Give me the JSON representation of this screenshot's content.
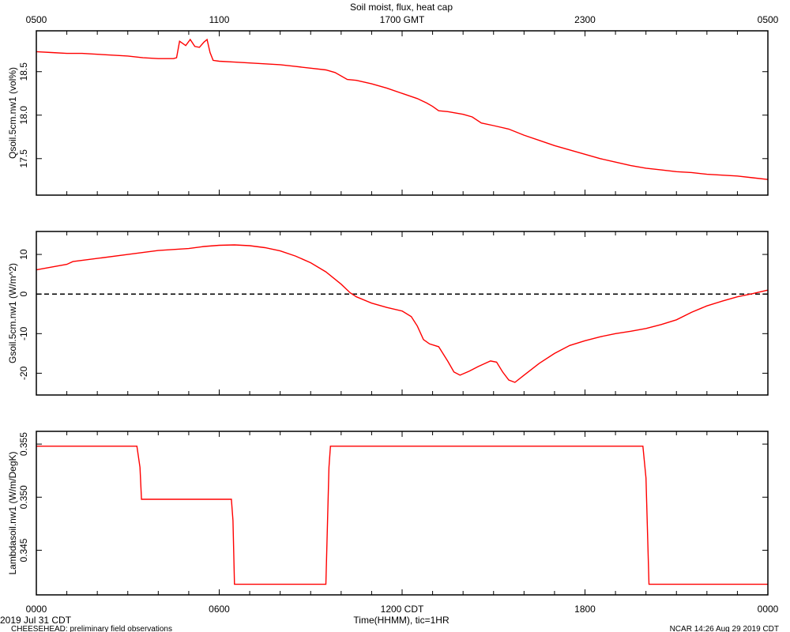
{
  "chart_data": {
    "type": "line",
    "title": "Soil moist, flux, heat cap",
    "x_top_ticks": [
      "0500",
      "1100",
      "1700 GMT",
      "2300",
      "0500"
    ],
    "x_bottom_ticks": [
      "0000",
      "0600",
      "1200 CDT",
      "1800",
      "0000"
    ],
    "xlabel": "Time(HHMM), tic=1HR",
    "xlim": [
      0,
      24
    ],
    "date_label": "2019 Jul 31 CDT",
    "footer_left": "CHEESEHEAD: preliminary field observations",
    "footer_right": "NCAR 14:26 Aug 29 2019 CDT",
    "line_color": "#ff0000",
    "panels": [
      {
        "name": "moisture",
        "ylabel": "Qsoil.5cm.nw1 (vol%)",
        "ylim": [
          17.08,
          18.97
        ],
        "yticks": [
          17.5,
          18.0,
          18.5
        ],
        "ytick_labels": [
          "17.5",
          "18.0",
          "18.5"
        ],
        "zero_line": false,
        "points": [
          [
            0,
            18.73
          ],
          [
            0.5,
            18.72
          ],
          [
            1,
            18.71
          ],
          [
            1.5,
            18.71
          ],
          [
            2,
            18.7
          ],
          [
            2.5,
            18.69
          ],
          [
            3,
            18.68
          ],
          [
            3.5,
            18.66
          ],
          [
            4,
            18.65
          ],
          [
            4.5,
            18.65
          ],
          [
            4.6,
            18.66
          ],
          [
            4.7,
            18.85
          ],
          [
            4.9,
            18.8
          ],
          [
            5.05,
            18.87
          ],
          [
            5.2,
            18.79
          ],
          [
            5.35,
            18.78
          ],
          [
            5.5,
            18.84
          ],
          [
            5.6,
            18.87
          ],
          [
            5.7,
            18.72
          ],
          [
            5.8,
            18.63
          ],
          [
            6,
            18.62
          ],
          [
            6.5,
            18.61
          ],
          [
            7,
            18.6
          ],
          [
            7.5,
            18.59
          ],
          [
            8,
            18.58
          ],
          [
            8.5,
            18.56
          ],
          [
            9,
            18.54
          ],
          [
            9.5,
            18.52
          ],
          [
            9.8,
            18.49
          ],
          [
            10.2,
            18.41
          ],
          [
            10.5,
            18.4
          ],
          [
            11,
            18.36
          ],
          [
            11.5,
            18.31
          ],
          [
            12,
            18.25
          ],
          [
            12.5,
            18.19
          ],
          [
            12.8,
            18.14
          ],
          [
            13,
            18.1
          ],
          [
            13.2,
            18.05
          ],
          [
            13.5,
            18.04
          ],
          [
            14,
            18.01
          ],
          [
            14.3,
            17.98
          ],
          [
            14.6,
            17.91
          ],
          [
            15,
            17.88
          ],
          [
            15.5,
            17.84
          ],
          [
            16,
            17.77
          ],
          [
            16.5,
            17.71
          ],
          [
            17,
            17.65
          ],
          [
            17.5,
            17.6
          ],
          [
            18,
            17.55
          ],
          [
            18.5,
            17.5
          ],
          [
            19,
            17.46
          ],
          [
            19.5,
            17.42
          ],
          [
            20,
            17.39
          ],
          [
            20.5,
            17.37
          ],
          [
            21,
            17.35
          ],
          [
            21.5,
            17.34
          ],
          [
            22,
            17.32
          ],
          [
            22.5,
            17.31
          ],
          [
            23,
            17.3
          ],
          [
            23.5,
            17.28
          ],
          [
            24,
            17.26
          ]
        ]
      },
      {
        "name": "flux",
        "ylabel": "Gsoil.5cm.nw1 (W/m^2)",
        "ylim": [
          -25.5,
          15.8
        ],
        "yticks": [
          -20,
          -10,
          0,
          10
        ],
        "ytick_labels": [
          "-20",
          "-10",
          "0",
          "10"
        ],
        "zero_line": true,
        "points": [
          [
            0,
            6.1
          ],
          [
            0.5,
            6.8
          ],
          [
            1,
            7.5
          ],
          [
            1.2,
            8.2
          ],
          [
            2,
            9.0
          ],
          [
            3,
            10.0
          ],
          [
            3.5,
            10.5
          ],
          [
            4,
            11.0
          ],
          [
            5,
            11.5
          ],
          [
            5.5,
            12.0
          ],
          [
            6,
            12.3
          ],
          [
            6.5,
            12.4
          ],
          [
            7,
            12.2
          ],
          [
            7.5,
            11.7
          ],
          [
            8,
            10.9
          ],
          [
            8.5,
            9.6
          ],
          [
            9,
            7.9
          ],
          [
            9.5,
            5.6
          ],
          [
            10,
            2.5
          ],
          [
            10.3,
            0.3
          ],
          [
            10.5,
            -0.7
          ],
          [
            11,
            -2.3
          ],
          [
            11.5,
            -3.4
          ],
          [
            12,
            -4.3
          ],
          [
            12.3,
            -5.7
          ],
          [
            12.5,
            -8.1
          ],
          [
            12.7,
            -11.5
          ],
          [
            12.9,
            -12.6
          ],
          [
            13.2,
            -13.3
          ],
          [
            13.5,
            -17.0
          ],
          [
            13.7,
            -19.7
          ],
          [
            13.9,
            -20.5
          ],
          [
            14.2,
            -19.5
          ],
          [
            14.5,
            -18.3
          ],
          [
            14.7,
            -17.6
          ],
          [
            14.9,
            -16.9
          ],
          [
            15.1,
            -17.2
          ],
          [
            15.3,
            -19.7
          ],
          [
            15.5,
            -21.7
          ],
          [
            15.7,
            -22.3
          ],
          [
            16,
            -20.5
          ],
          [
            16.5,
            -17.5
          ],
          [
            17,
            -15.0
          ],
          [
            17.5,
            -13.0
          ],
          [
            18,
            -11.8
          ],
          [
            18.5,
            -10.8
          ],
          [
            19,
            -10.0
          ],
          [
            19.5,
            -9.4
          ],
          [
            20,
            -8.7
          ],
          [
            20.5,
            -7.7
          ],
          [
            21,
            -6.5
          ],
          [
            21.5,
            -4.6
          ],
          [
            22,
            -3.0
          ],
          [
            22.5,
            -1.8
          ],
          [
            23,
            -0.7
          ],
          [
            23.5,
            0.1
          ],
          [
            24,
            1.0
          ]
        ]
      },
      {
        "name": "heatcap",
        "ylabel": "Lambdasoil.nw1 (W/m/DegK)",
        "ylim": [
          0.3408,
          0.3562
        ],
        "yticks": [
          0.345,
          0.35,
          0.355
        ],
        "ytick_labels": [
          "0.345",
          "0.350",
          "0.355"
        ],
        "zero_line": false,
        "points": [
          [
            0,
            0.3548
          ],
          [
            3.3,
            0.3548
          ],
          [
            3.4,
            0.3528
          ],
          [
            3.45,
            0.3498
          ],
          [
            6.4,
            0.3498
          ],
          [
            6.45,
            0.3478
          ],
          [
            6.5,
            0.3418
          ],
          [
            9.5,
            0.3418
          ],
          [
            9.6,
            0.3528
          ],
          [
            9.65,
            0.3548
          ],
          [
            19.9,
            0.3548
          ],
          [
            20,
            0.3518
          ],
          [
            20.1,
            0.3418
          ],
          [
            24,
            0.3418
          ]
        ]
      }
    ]
  }
}
